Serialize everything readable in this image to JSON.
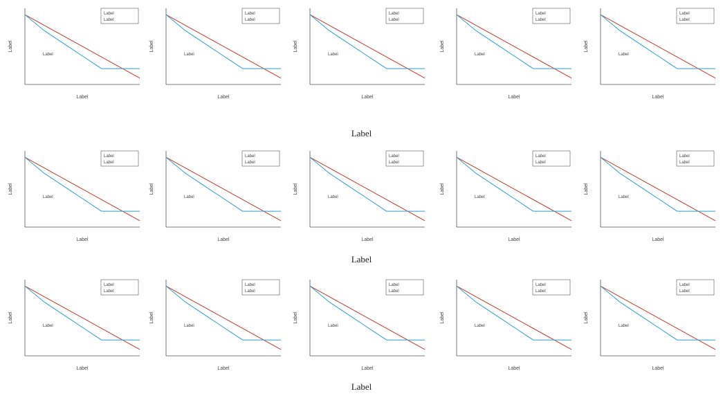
{
  "colors": {
    "data_line": "#2e9fc7",
    "fit_line": "#c0392b",
    "axis": "#555555",
    "text": "#444444"
  },
  "legend": {
    "data": "Label",
    "fitting": "Label"
  },
  "rows": [
    {
      "title": "Label"
    },
    {
      "title": "Label"
    },
    {
      "title": "Label"
    }
  ],
  "chart_data": [
    {
      "row": 0,
      "col": 0,
      "type": "line",
      "ylabel": "Label",
      "xlabel": "Label",
      "slope_label": "Label",
      "legend": "top-right",
      "series": [
        {
          "name": "Label",
          "x": [
            0,
            0.5,
            1.0,
            1.5,
            2.0,
            2.5,
            3.0
          ],
          "y": [
            0,
            -0.5,
            -0.9,
            -1.3,
            -1.7,
            -1.7,
            -1.7
          ]
        },
        {
          "name": "Label",
          "x": [
            0,
            3.0
          ],
          "y": [
            0,
            -2.0
          ]
        }
      ]
    },
    {
      "row": 0,
      "col": 1,
      "type": "line",
      "ylabel": "Label",
      "xlabel": "Label",
      "slope_label": "Label",
      "legend": "top-right",
      "series": [
        {
          "name": "Label",
          "x": [
            0,
            0.5,
            1.0,
            1.5,
            2.0,
            2.5,
            3.0
          ],
          "y": [
            0,
            -0.5,
            -0.9,
            -1.3,
            -1.7,
            -1.7,
            -1.7
          ]
        },
        {
          "name": "Label",
          "x": [
            0,
            3.0
          ],
          "y": [
            0,
            -2.0
          ]
        }
      ]
    },
    {
      "row": 0,
      "col": 2,
      "type": "line",
      "ylabel": "Label",
      "xlabel": "Label",
      "slope_label": "Label",
      "legend": "top-right",
      "series": [
        {
          "name": "Label",
          "x": [
            0,
            0.5,
            1.0,
            1.5,
            2.0,
            2.5,
            3.0
          ],
          "y": [
            0,
            -0.5,
            -0.9,
            -1.3,
            -1.7,
            -1.7,
            -1.7
          ]
        },
        {
          "name": "Label",
          "x": [
            0,
            3.0
          ],
          "y": [
            0,
            -2.0
          ]
        }
      ]
    },
    {
      "row": 0,
      "col": 3,
      "type": "line",
      "ylabel": "Label",
      "xlabel": "Label",
      "slope_label": "Label",
      "legend": "top-right",
      "series": [
        {
          "name": "Label",
          "x": [
            0,
            0.5,
            1.0,
            1.5,
            2.0,
            2.5,
            3.0
          ],
          "y": [
            0,
            -0.5,
            -0.9,
            -1.3,
            -1.7,
            -1.7,
            -1.7
          ]
        },
        {
          "name": "Label",
          "x": [
            0,
            3.0
          ],
          "y": [
            0,
            -2.0
          ]
        }
      ]
    },
    {
      "row": 0,
      "col": 4,
      "type": "line",
      "ylabel": "Label",
      "xlabel": "Label",
      "slope_label": "Label",
      "legend": "top-right",
      "series": [
        {
          "name": "Label",
          "x": [
            0,
            0.5,
            1.0,
            1.5,
            2.0,
            2.5,
            3.0
          ],
          "y": [
            0,
            -0.5,
            -0.9,
            -1.3,
            -1.7,
            -1.7,
            -1.7
          ]
        },
        {
          "name": "Label",
          "x": [
            0,
            3.0
          ],
          "y": [
            0,
            -2.0
          ]
        }
      ]
    },
    {
      "row": 1,
      "col": 0,
      "type": "line",
      "ylabel": "Label",
      "xlabel": "Label",
      "slope_label": "Label",
      "legend": "top-right",
      "series": [
        {
          "name": "Label",
          "x": [
            0,
            0.5,
            1.0,
            1.5,
            2.0,
            2.5,
            3.0
          ],
          "y": [
            0,
            -0.5,
            -0.9,
            -1.3,
            -1.7,
            -1.7,
            -1.7
          ]
        },
        {
          "name": "Label",
          "x": [
            0,
            3.0
          ],
          "y": [
            0,
            -2.0
          ]
        }
      ]
    },
    {
      "row": 1,
      "col": 1,
      "type": "line",
      "ylabel": "Label",
      "xlabel": "Label",
      "slope_label": "Label",
      "legend": "top-right",
      "series": [
        {
          "name": "Label",
          "x": [
            0,
            0.5,
            1.0,
            1.5,
            2.0,
            2.5,
            3.0
          ],
          "y": [
            0,
            -0.5,
            -0.9,
            -1.3,
            -1.7,
            -1.7,
            -1.7
          ]
        },
        {
          "name": "Label",
          "x": [
            0,
            3.0
          ],
          "y": [
            0,
            -2.0
          ]
        }
      ]
    },
    {
      "row": 1,
      "col": 2,
      "type": "line",
      "ylabel": "Label",
      "xlabel": "Label",
      "slope_label": "Label",
      "legend": "top-right",
      "series": [
        {
          "name": "Label",
          "x": [
            0,
            0.5,
            1.0,
            1.5,
            2.0,
            2.5,
            3.0
          ],
          "y": [
            0,
            -0.5,
            -0.9,
            -1.3,
            -1.7,
            -1.7,
            -1.7
          ]
        },
        {
          "name": "Label",
          "x": [
            0,
            3.0
          ],
          "y": [
            0,
            -2.0
          ]
        }
      ]
    },
    {
      "row": 1,
      "col": 3,
      "type": "line",
      "ylabel": "Label",
      "xlabel": "Label",
      "slope_label": "Label",
      "legend": "top-right",
      "series": [
        {
          "name": "Label",
          "x": [
            0,
            0.5,
            1.0,
            1.5,
            2.0,
            2.5,
            3.0
          ],
          "y": [
            0,
            -0.5,
            -0.9,
            -1.3,
            -1.7,
            -1.7,
            -1.7
          ]
        },
        {
          "name": "Label",
          "x": [
            0,
            3.0
          ],
          "y": [
            0,
            -2.0
          ]
        }
      ]
    },
    {
      "row": 1,
      "col": 4,
      "type": "line",
      "ylabel": "Label",
      "xlabel": "Label",
      "slope_label": "Label",
      "legend": "top-right",
      "series": [
        {
          "name": "Label",
          "x": [
            0,
            0.5,
            1.0,
            1.5,
            2.0,
            2.5,
            3.0
          ],
          "y": [
            0,
            -0.5,
            -0.9,
            -1.3,
            -1.7,
            -1.7,
            -1.7
          ]
        },
        {
          "name": "Label",
          "x": [
            0,
            3.0
          ],
          "y": [
            0,
            -2.0
          ]
        }
      ]
    },
    {
      "row": 2,
      "col": 0,
      "type": "line",
      "ylabel": "Label",
      "xlabel": "Label",
      "slope_label": "Label",
      "legend": "top-right",
      "series": [
        {
          "name": "Label",
          "x": [
            0,
            0.5,
            1.0,
            1.5,
            2.0,
            2.5,
            3.0
          ],
          "y": [
            0,
            -0.5,
            -0.9,
            -1.3,
            -1.7,
            -1.7,
            -1.7
          ]
        },
        {
          "name": "Label",
          "x": [
            0,
            3.0
          ],
          "y": [
            0,
            -2.0
          ]
        }
      ]
    },
    {
      "row": 2,
      "col": 1,
      "type": "line",
      "ylabel": "Label",
      "xlabel": "Label",
      "slope_label": "Label",
      "legend": "top-right",
      "series": [
        {
          "name": "Label",
          "x": [
            0,
            0.5,
            1.0,
            1.5,
            2.0,
            2.5,
            3.0
          ],
          "y": [
            0,
            -0.5,
            -0.9,
            -1.3,
            -1.7,
            -1.7,
            -1.7
          ]
        },
        {
          "name": "Label",
          "x": [
            0,
            3.0
          ],
          "y": [
            0,
            -2.0
          ]
        }
      ]
    },
    {
      "row": 2,
      "col": 2,
      "type": "line",
      "ylabel": "Label",
      "xlabel": "Label",
      "slope_label": "Label",
      "legend": "top-right",
      "series": [
        {
          "name": "Label",
          "x": [
            0,
            0.5,
            1.0,
            1.5,
            2.0,
            2.5,
            3.0
          ],
          "y": [
            0,
            -0.5,
            -0.9,
            -1.3,
            -1.7,
            -1.7,
            -1.7
          ]
        },
        {
          "name": "Label",
          "x": [
            0,
            3.0
          ],
          "y": [
            0,
            -2.0
          ]
        }
      ]
    },
    {
      "row": 2,
      "col": 3,
      "type": "line",
      "ylabel": "Label",
      "xlabel": "Label",
      "slope_label": "Label",
      "legend": "top-right",
      "series": [
        {
          "name": "Label",
          "x": [
            0,
            0.5,
            1.0,
            1.5,
            2.0,
            2.5,
            3.0
          ],
          "y": [
            0,
            -0.5,
            -0.9,
            -1.3,
            -1.7,
            -1.7,
            -1.7
          ]
        },
        {
          "name": "Label",
          "x": [
            0,
            3.0
          ],
          "y": [
            0,
            -2.0
          ]
        }
      ]
    },
    {
      "row": 2,
      "col": 4,
      "type": "line",
      "ylabel": "Label",
      "xlabel": "Label",
      "slope_label": "Label",
      "legend": "top-right",
      "series": [
        {
          "name": "Label",
          "x": [
            0,
            0.5,
            1.0,
            1.5,
            2.0,
            2.5,
            3.0
          ],
          "y": [
            0,
            -0.5,
            -0.9,
            -1.3,
            -1.7,
            -1.7,
            -1.7
          ]
        },
        {
          "name": "Label",
          "x": [
            0,
            3.0
          ],
          "y": [
            0,
            -2.0
          ]
        }
      ]
    }
  ]
}
